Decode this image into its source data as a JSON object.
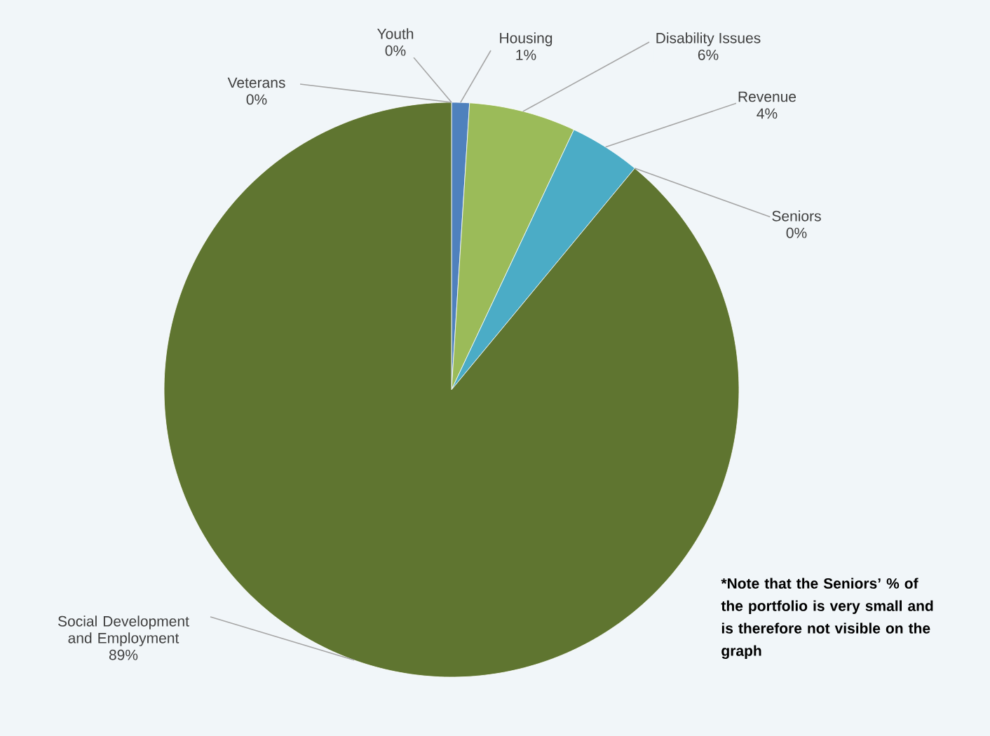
{
  "chart_data": {
    "type": "pie",
    "categories": [
      "Youth",
      "Housing",
      "Disability Issues",
      "Revenue",
      "Seniors",
      "Social Development and Employment",
      "Veterans"
    ],
    "values": [
      0,
      1,
      6,
      4,
      0,
      89,
      0
    ],
    "colors": [
      "#c0504d",
      "#4f81bd",
      "#9bbb59",
      "#4bacc6",
      "#f79646",
      "#5f7530",
      "#8064a2"
    ],
    "value_labels": [
      "0%",
      "1%",
      "6%",
      "4%",
      "0%",
      "89%",
      "0%"
    ],
    "annotations": [
      "*Note that the Seniors’ % of the portfolio is very small and is therefore not visible on the graph"
    ]
  }
}
